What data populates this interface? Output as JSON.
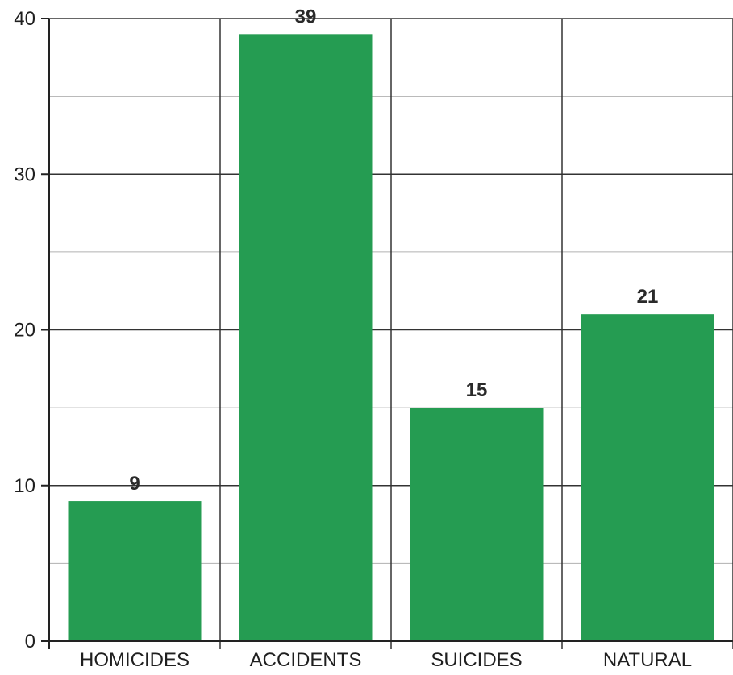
{
  "chart_data": {
    "type": "bar",
    "categories": [
      "HOMICIDES",
      "ACCIDENTS",
      "SUICIDES",
      "NATURAL"
    ],
    "values": [
      9,
      39,
      15,
      21
    ],
    "ylim": [
      0,
      40
    ],
    "yticks": [
      0,
      10,
      20,
      30,
      40
    ],
    "grid": true,
    "bar_color": "#259c52",
    "data_labels": [
      "9",
      "39",
      "15",
      "21"
    ],
    "tick_labels": [
      "0",
      "10",
      "20",
      "30",
      "40"
    ]
  }
}
